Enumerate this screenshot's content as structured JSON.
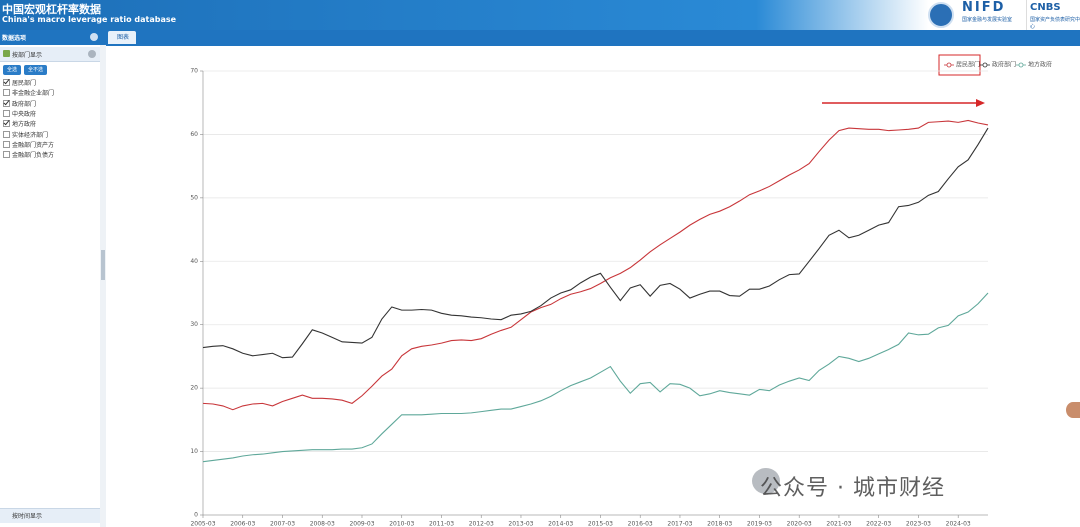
{
  "header": {
    "title": "中国宏观杠杆率数据",
    "subtitle": "China's macro leverage ratio database",
    "logo_left": "NIFD",
    "logo_left_sub": "国家金融与发展实验室",
    "logo_right": "CNBS",
    "logo_right_sub": "国家资产负债表研究中心"
  },
  "sidebar": {
    "title": "数据选项",
    "panel": "按部门显示",
    "buttons": [
      "全选",
      "全不选"
    ],
    "items": [
      {
        "label": "居民部门",
        "checked": true
      },
      {
        "label": "非金融企业部门",
        "checked": false
      },
      {
        "label": "政府部门",
        "checked": true
      },
      {
        "label": "中央政府",
        "checked": false
      },
      {
        "label": "地方政府",
        "checked": true
      },
      {
        "label": "实体经济部门",
        "checked": false
      },
      {
        "label": "金融部门资产方",
        "checked": false
      },
      {
        "label": "金融部门负债方",
        "checked": false
      }
    ],
    "footer": "按时间显示"
  },
  "tab": "图表",
  "chart": {
    "type": "line",
    "categories": [
      "2005-03",
      null,
      null,
      null,
      "2006-03",
      null,
      null,
      null,
      "2007-03",
      null,
      null,
      null,
      "2008-03",
      null,
      null,
      null,
      "2009-03",
      null,
      null,
      null,
      "2010-03",
      null,
      null,
      null,
      "2011-03",
      null,
      null,
      null,
      "2012-03",
      null,
      null,
      null,
      "2013-03",
      null,
      null,
      null,
      "2014-03",
      null,
      null,
      null,
      "2015-03",
      null,
      null,
      null,
      "2016-03",
      null,
      null,
      null,
      "2017-03",
      null,
      null,
      null,
      "2018-03",
      null,
      null,
      null,
      "2019-03",
      null,
      null,
      null,
      "2020-03",
      null,
      null,
      null,
      "2021-03",
      null,
      null,
      null,
      "2022-03",
      null,
      null,
      null,
      "2023-03",
      null,
      null,
      null,
      "2024-03",
      null,
      null,
      null
    ],
    "series": [
      {
        "name": "居民部门",
        "color": "#c8363a",
        "values": [
          17.6,
          17.5,
          17.2,
          16.6,
          17.2,
          17.5,
          17.6,
          17.2,
          17.9,
          18.4,
          18.9,
          18.4,
          18.4,
          18.3,
          18.1,
          17.6,
          18.8,
          20.3,
          21.9,
          23.0,
          25.1,
          26.2,
          26.6,
          26.8,
          27.1,
          27.5,
          27.6,
          27.5,
          27.8,
          28.5,
          29.1,
          29.6,
          30.8,
          32.0,
          32.7,
          33.2,
          34.1,
          34.8,
          35.2,
          35.7,
          36.5,
          37.4,
          38.1,
          39.0,
          40.2,
          41.5,
          42.6,
          43.6,
          44.6,
          45.7,
          46.6,
          47.4,
          47.9,
          48.6,
          49.5,
          50.5,
          51.1,
          51.8,
          52.7,
          53.6,
          54.4,
          55.4,
          57.3,
          59.1,
          60.6,
          61.0,
          60.9,
          60.8,
          60.8,
          60.6,
          60.7,
          60.8,
          61.0,
          61.9,
          62.0,
          62.1,
          61.9,
          62.2,
          61.8,
          61.5
        ]
      },
      {
        "name": "政府部门",
        "color": "#333333",
        "values": [
          26.4,
          26.6,
          26.7,
          26.2,
          25.5,
          25.1,
          25.3,
          25.5,
          24.8,
          24.9,
          27.0,
          29.2,
          28.7,
          28.0,
          27.3,
          27.2,
          27.1,
          28.0,
          30.9,
          32.8,
          32.3,
          32.3,
          32.4,
          32.3,
          31.8,
          31.5,
          31.4,
          31.2,
          31.1,
          30.9,
          30.8,
          31.5,
          31.7,
          32.1,
          33.0,
          34.2,
          35.0,
          35.5,
          36.6,
          37.5,
          38.1,
          35.9,
          33.8,
          35.8,
          36.3,
          34.5,
          36.2,
          36.5,
          35.6,
          34.2,
          34.8,
          35.3,
          35.3,
          34.6,
          34.5,
          35.6,
          35.6,
          36.1,
          37.1,
          37.9,
          38.0,
          40.0,
          42.0,
          44.1,
          44.9,
          43.7,
          44.1,
          44.9,
          45.7,
          46.1,
          48.6,
          48.8,
          49.3,
          50.4,
          51.0,
          53.0,
          54.9,
          56.0,
          58.4,
          61.0
        ]
      },
      {
        "name": "地方政府",
        "color": "#5fa89a",
        "values": [
          8.4,
          8.6,
          8.8,
          9.0,
          9.3,
          9.5,
          9.6,
          9.8,
          10.0,
          10.1,
          10.2,
          10.3,
          10.3,
          10.3,
          10.4,
          10.4,
          10.6,
          11.2,
          12.8,
          14.3,
          15.8,
          15.8,
          15.8,
          15.9,
          16.0,
          16.0,
          16.0,
          16.1,
          16.3,
          16.5,
          16.7,
          16.7,
          17.1,
          17.5,
          18.0,
          18.7,
          19.6,
          20.4,
          21.0,
          21.6,
          22.5,
          23.4,
          21.1,
          19.2,
          20.7,
          20.9,
          19.4,
          20.7,
          20.6,
          20.0,
          18.8,
          19.1,
          19.6,
          19.3,
          19.1,
          18.9,
          19.8,
          19.6,
          20.5,
          21.1,
          21.6,
          21.2,
          22.8,
          23.8,
          25.0,
          24.7,
          24.2,
          24.7,
          25.4,
          26.1,
          26.9,
          28.7,
          28.4,
          28.5,
          29.5,
          29.9,
          31.4,
          32.0,
          33.3,
          35.0
        ]
      }
    ],
    "ylim": [
      0,
      70
    ],
    "yticks": [
      0,
      10,
      20,
      30,
      40,
      50,
      60,
      70
    ],
    "grid": true,
    "legend": "top-right"
  },
  "watermark": "公众号 · 城市财经"
}
